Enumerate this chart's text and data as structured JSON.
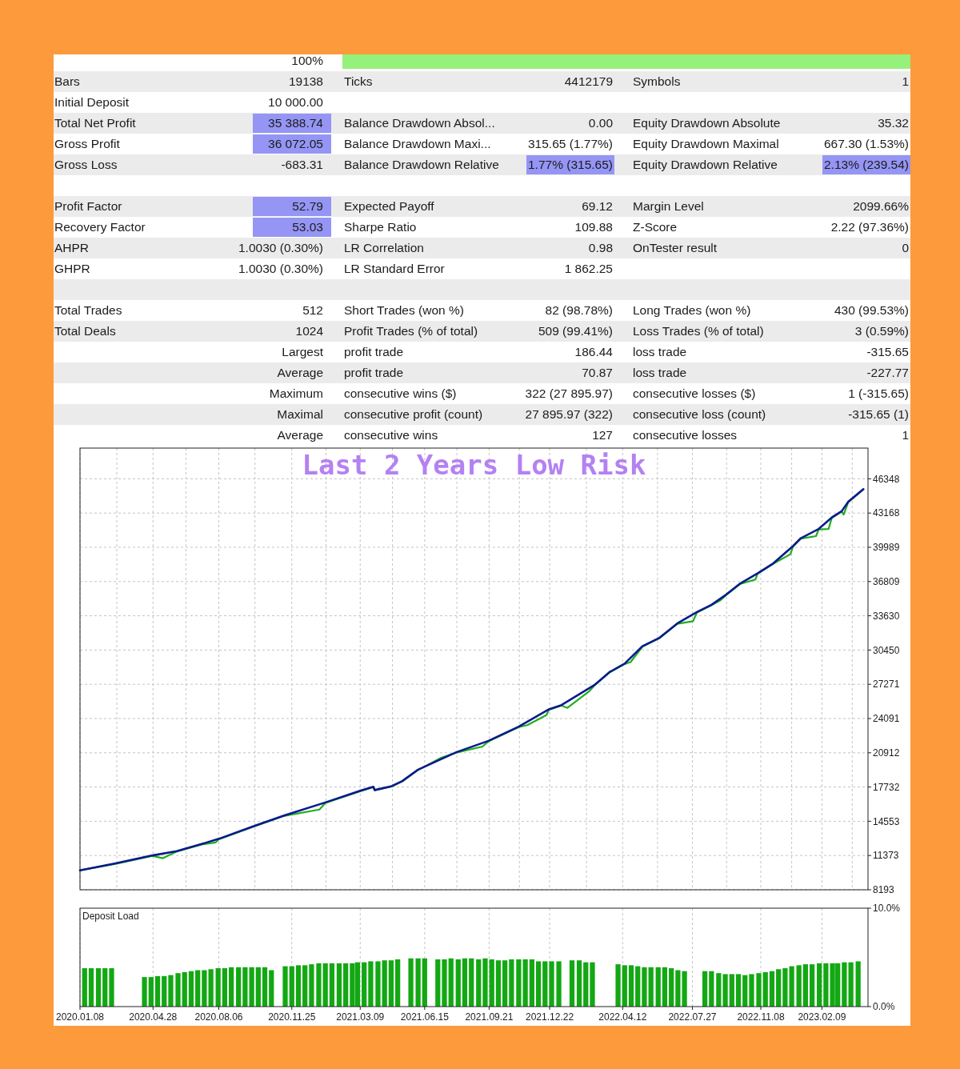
{
  "chart_data": [
    {
      "type": "other",
      "annotations": [
        "100%",
        "Bars",
        "19138",
        "Ticks",
        "4412179",
        "Symbols",
        "1",
        "Initial Deposit",
        "10 000.00",
        "Total Net Profit",
        "35 388.74",
        "Balance Drawdown Absol...",
        "0.00",
        "Equity Drawdown Absolute",
        "35.32",
        "Gross Profit",
        "36 072.05",
        "Balance Drawdown Maxi...",
        "315.65 (1.77%)",
        "Equity Drawdown Maximal",
        "667.30 (1.53%)",
        "Gross Loss",
        "-683.31",
        "Balance Drawdown Relative",
        "1.77% (315.65)",
        "Equity Drawdown Relative",
        "2.13% (239.54)",
        "Profit Factor",
        "52.79",
        "Expected Payoff",
        "69.12",
        "Margin Level",
        "2099.66%",
        "Recovery Factor",
        "53.03",
        "Sharpe Ratio",
        "109.88",
        "Z-Score",
        "2.22 (97.36%)",
        "AHPR",
        "1.0030 (0.30%)",
        "LR Correlation",
        "0.98",
        "OnTester result",
        "0",
        "GHPR",
        "1.0030 (0.30%)",
        "LR Standard Error",
        "1 862.25",
        "Total Trades",
        "512",
        "Short Trades (won %)",
        "82 (98.78%)",
        "Long Trades (won %)",
        "430 (99.53%)",
        "Total Deals",
        "1024",
        "Profit Trades (% of total)",
        "509 (99.41%)",
        "Loss Trades (% of total)",
        "3 (0.59%)",
        "Largest",
        "profit trade",
        "186.44",
        "loss trade",
        "-315.65",
        "Average",
        "profit trade",
        "70.87",
        "loss trade",
        "-227.77",
        "Maximum",
        "consecutive wins ($)",
        "322 (27 895.97)",
        "consecutive losses ($)",
        "1 (-315.65)",
        "Maximal",
        "consecutive profit (count)",
        "27 895.97 (322)",
        "consecutive loss (count)",
        "-315.65 (1)",
        "Average",
        "consecutive wins",
        "127",
        "consecutive losses",
        "1"
      ],
      "colors": [
        null,
        null,
        null,
        null,
        null,
        null,
        null,
        null,
        null,
        null,
        "#9595f5",
        null,
        null,
        null,
        null,
        null,
        "#9595f5",
        null,
        null,
        null,
        null,
        null,
        null,
        null,
        "#9595f5",
        null,
        "#9595f5",
        null,
        "#9595f5",
        null,
        null,
        null,
        null,
        null,
        "#9595f5",
        null,
        null,
        null,
        null,
        null,
        null,
        null,
        null,
        null,
        null,
        null,
        null,
        null,
        null,
        null,
        null,
        null,
        null,
        null,
        null,
        null,
        null,
        null,
        null,
        null,
        null,
        null,
        null,
        null,
        null,
        null,
        null,
        null,
        null,
        null,
        null,
        null,
        null,
        null,
        null,
        null,
        null,
        null,
        null,
        null,
        null,
        null,
        null,
        null
      ]
    },
    {
      "type": "line",
      "title": "Last 2 Years Low Risk",
      "xlim": [
        "2020-01-08",
        "2023-04-20"
      ],
      "xticks": [
        {
          "value": "2020-01-08",
          "label": null
        },
        {
          "value": "2020-03-04",
          "label": null
        },
        {
          "value": "2020-04-28",
          "label": null
        },
        {
          "value": "2020-06-17",
          "label": null
        },
        {
          "value": "2020-08-06",
          "label": null
        },
        {
          "value": "2020-09-30",
          "label": null
        },
        {
          "value": "2020-11-25",
          "label": null
        },
        {
          "value": "2021-01-16",
          "label": null
        },
        {
          "value": "2021-03-09",
          "label": null
        },
        {
          "value": "2021-04-27",
          "label": null
        },
        {
          "value": "2021-06-15",
          "label": null
        },
        {
          "value": "2021-08-03",
          "label": null
        },
        {
          "value": "2021-09-21",
          "label": null
        },
        {
          "value": "2021-11-06",
          "label": null
        },
        {
          "value": "2021-12-22",
          "label": null
        },
        {
          "value": "2022-02-16",
          "label": null
        },
        {
          "value": "2022-04-12",
          "label": null
        },
        {
          "value": "2022-06-04",
          "label": null
        },
        {
          "value": "2022-07-27",
          "label": null
        },
        {
          "value": "2022-09-17",
          "label": null
        },
        {
          "value": "2022-11-08",
          "label": null
        },
        {
          "value": "2022-12-25",
          "label": null
        },
        {
          "value": "2023-02-09",
          "label": null
        },
        {
          "value": "2023-03-27",
          "label": null
        }
      ],
      "ylim": [
        8193,
        49200
      ],
      "yticks": [
        8193,
        11373,
        14553,
        17732,
        20912,
        24091,
        27271,
        30450,
        33630,
        36809,
        39989,
        43168,
        46348
      ],
      "grid": true,
      "tick_labels": "y",
      "series": [
        {
          "color": "#1fae1f",
          "x": [
            "2020-01-08",
            "2020-03-02",
            "2020-04-27",
            "2020-05-13",
            "2020-06-03",
            "2020-07-11",
            "2020-08-01",
            "2020-08-06",
            "2020-09-29",
            "2020-11-14",
            "2021-01-06",
            "2021-01-15",
            "2021-03-08",
            "2021-03-29",
            "2021-03-31",
            "2021-04-26",
            "2021-05-12",
            "2021-06-05",
            "2021-07-09",
            "2021-08-02",
            "2021-09-11",
            "2021-09-20",
            "2021-11-05",
            "2021-11-18",
            "2021-12-17",
            "2021-12-21",
            "2022-01-09",
            "2022-01-18",
            "2022-02-21",
            "2022-02-28",
            "2022-03-23",
            "2022-04-15",
            "2022-04-24",
            "2022-05-12",
            "2022-06-07",
            "2022-07-04",
            "2022-07-28",
            "2022-08-03",
            "2022-08-25",
            "2022-09-07",
            "2022-09-16",
            "2022-10-08",
            "2022-10-31",
            "2022-11-03",
            "2022-11-27",
            "2022-12-23",
            "2022-12-27",
            "2023-01-08",
            "2023-01-31",
            "2023-02-04",
            "2023-02-19",
            "2023-02-24",
            "2023-03-11",
            "2023-03-14",
            "2023-03-21",
            "2023-04-13"
          ],
          "values": [
            10000,
            10600,
            11340,
            11120,
            11740,
            12400,
            12580,
            12880,
            14080,
            15060,
            15640,
            16260,
            17320,
            17720,
            17420,
            17780,
            18250,
            19310,
            20420,
            20920,
            21490,
            21980,
            23300,
            23480,
            24410,
            24910,
            25300,
            25080,
            26670,
            27160,
            28360,
            29150,
            29330,
            30760,
            31550,
            32880,
            33130,
            33940,
            34610,
            35040,
            35540,
            36600,
            37000,
            37530,
            38460,
            39350,
            40060,
            40800,
            41030,
            41650,
            41690,
            42720,
            43300,
            43020,
            44180,
            45360
          ]
        },
        {
          "color": "#0b1a8c",
          "x": [
            "2020-01-08",
            "2020-03-02",
            "2020-04-27",
            "2020-06-03",
            "2020-07-11",
            "2020-08-06",
            "2020-09-29",
            "2020-11-14",
            "2021-01-15",
            "2021-03-08",
            "2021-03-29",
            "2021-03-31",
            "2021-04-26",
            "2021-05-12",
            "2021-06-05",
            "2021-08-02",
            "2021-09-20",
            "2021-11-05",
            "2021-12-21",
            "2022-01-09",
            "2022-02-28",
            "2022-03-23",
            "2022-04-15",
            "2022-05-12",
            "2022-06-07",
            "2022-07-04",
            "2022-08-03",
            "2022-08-25",
            "2022-09-16",
            "2022-10-08",
            "2022-11-03",
            "2022-11-27",
            "2022-12-27",
            "2023-01-08",
            "2023-02-04",
            "2023-02-24",
            "2023-03-11",
            "2023-03-21",
            "2023-04-13"
          ],
          "values": [
            10000,
            10640,
            11380,
            11780,
            12440,
            12920,
            14120,
            15100,
            16300,
            17360,
            17760,
            17450,
            17820,
            18290,
            19350,
            20960,
            22020,
            23340,
            24950,
            25340,
            27200,
            28400,
            29190,
            30800,
            31590,
            32920,
            33980,
            34650,
            35580,
            36640,
            37570,
            38500,
            40100,
            40840,
            41690,
            42760,
            43340,
            44220,
            45390
          ]
        }
      ]
    },
    {
      "type": "bar",
      "title": "Deposit Load",
      "color": "#13a813",
      "xlim": [
        "2020-01-08",
        "2023-04-20"
      ],
      "xticks": [
        {
          "value": "2020-01-08",
          "label": "2020.01.08"
        },
        {
          "value": "2020-04-28",
          "label": "2020.04.28"
        },
        {
          "value": "2020-08-06",
          "label": "2020.08.06"
        },
        {
          "value": "2020-11-25",
          "label": "2020.11.25"
        },
        {
          "value": "2021-03-09",
          "label": "2021.03.09"
        },
        {
          "value": "2021-06-15",
          "label": "2021.06.15"
        },
        {
          "value": "2021-09-21",
          "label": "2021.09.21"
        },
        {
          "value": "2021-12-22",
          "label": "2021.12.22"
        },
        {
          "value": "2022-04-12",
          "label": "2022.04.12"
        },
        {
          "value": "2022-07-27",
          "label": "2022.07.27"
        },
        {
          "value": "2022-11-08",
          "label": "2022.11.08"
        },
        {
          "value": "2023-02-09",
          "label": "2023.02.09"
        }
      ],
      "ylim": [
        0,
        10
      ],
      "yticks": [
        {
          "value": 0,
          "label": "0.0%"
        },
        {
          "value": 10,
          "label": "10.0%"
        }
      ],
      "grid": "x",
      "x": [
        "2020-01-15",
        "2020-01-25",
        "2020-02-05",
        "2020-02-15",
        "2020-02-25",
        "2020-03-05",
        "2020-03-15",
        "2020-03-25",
        "2020-04-05",
        "2020-04-15",
        "2020-04-25",
        "2020-05-05",
        "2020-05-15",
        "2020-05-25",
        "2020-06-05",
        "2020-06-15",
        "2020-06-25",
        "2020-07-05",
        "2020-07-15",
        "2020-07-25",
        "2020-08-05",
        "2020-08-15",
        "2020-08-25",
        "2020-09-05",
        "2020-09-15",
        "2020-09-25",
        "2020-10-05",
        "2020-10-15",
        "2020-10-25",
        "2020-11-05",
        "2020-11-15",
        "2020-11-25",
        "2020-12-05",
        "2020-12-15",
        "2020-12-25",
        "2021-01-05",
        "2021-01-15",
        "2021-01-25",
        "2021-02-05",
        "2021-02-15",
        "2021-02-25",
        "2021-03-05",
        "2021-03-15",
        "2021-03-25",
        "2021-04-05",
        "2021-04-15",
        "2021-04-25",
        "2021-05-05",
        "2021-05-15",
        "2021-05-25",
        "2021-06-05",
        "2021-06-15",
        "2021-06-25",
        "2021-07-05",
        "2021-07-15",
        "2021-07-25",
        "2021-08-05",
        "2021-08-15",
        "2021-08-25",
        "2021-09-05",
        "2021-09-15",
        "2021-09-25",
        "2021-10-05",
        "2021-10-15",
        "2021-10-25",
        "2021-11-05",
        "2021-11-15",
        "2021-11-25",
        "2021-12-05",
        "2021-12-15",
        "2021-12-25",
        "2022-01-05",
        "2022-01-15",
        "2022-01-25",
        "2022-02-05",
        "2022-02-15",
        "2022-02-25",
        "2022-03-05",
        "2022-03-15",
        "2022-03-25",
        "2022-04-05",
        "2022-04-15",
        "2022-04-25",
        "2022-05-05",
        "2022-05-15",
        "2022-05-25",
        "2022-06-05",
        "2022-06-15",
        "2022-06-25",
        "2022-07-05",
        "2022-07-15",
        "2022-07-25",
        "2022-08-05",
        "2022-08-15",
        "2022-08-25",
        "2022-09-05",
        "2022-09-15",
        "2022-09-25",
        "2022-10-05",
        "2022-10-15",
        "2022-10-25",
        "2022-11-05",
        "2022-11-15",
        "2022-11-25",
        "2022-12-05",
        "2022-12-15",
        "2022-12-25",
        "2023-01-05",
        "2023-01-15",
        "2023-01-25",
        "2023-02-05",
        "2023-02-15",
        "2023-02-25",
        "2023-03-05",
        "2023-03-15",
        "2023-03-25",
        "2023-04-05"
      ],
      "values": [
        3.9,
        3.9,
        3.9,
        3.9,
        3.9,
        null,
        null,
        null,
        null,
        3.0,
        3.0,
        3.1,
        3.1,
        3.2,
        3.4,
        3.5,
        3.6,
        3.7,
        3.7,
        3.8,
        3.9,
        3.9,
        4.0,
        4.0,
        4.0,
        4.0,
        4.0,
        4.0,
        3.7,
        null,
        4.1,
        4.1,
        4.2,
        4.2,
        4.3,
        4.4,
        4.4,
        4.4,
        4.4,
        4.4,
        4.4,
        4.5,
        4.5,
        4.6,
        4.6,
        4.7,
        4.7,
        4.8,
        null,
        4.9,
        4.9,
        4.9,
        null,
        4.8,
        4.8,
        4.9,
        4.8,
        4.9,
        4.9,
        4.8,
        4.9,
        4.8,
        4.7,
        4.7,
        4.8,
        4.8,
        4.8,
        4.8,
        4.6,
        4.6,
        4.6,
        4.6,
        null,
        4.7,
        4.7,
        4.5,
        4.5,
        null,
        null,
        null,
        4.3,
        4.2,
        4.2,
        4.1,
        4.0,
        4.0,
        4.0,
        4.0,
        3.9,
        3.7,
        3.6,
        null,
        null,
        3.6,
        3.6,
        3.4,
        3.3,
        3.3,
        3.3,
        3.2,
        3.3,
        3.4,
        3.5,
        3.6,
        3.8,
        3.9,
        4.1,
        4.2,
        4.3,
        4.3,
        4.4,
        4.4,
        4.4,
        4.4,
        4.5,
        4.5,
        4.6
      ]
    }
  ]
}
